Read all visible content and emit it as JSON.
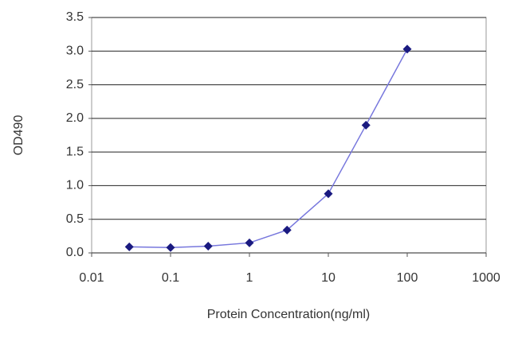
{
  "chart_data": {
    "type": "line",
    "x_label": "Protein Concentration(ng/ml)",
    "y_label": "OD490",
    "x": [
      0.03,
      0.1,
      0.3,
      1,
      3,
      10,
      30,
      100
    ],
    "series": [
      {
        "color": "#1a1a80",
        "line_color": "#7777dd",
        "values": [
          0.09,
          0.08,
          0.1,
          0.15,
          0.34,
          0.88,
          1.9,
          3.03
        ]
      }
    ],
    "xscale": "log",
    "xlim": [
      0.01,
      1000
    ],
    "xticks": [
      0.01,
      0.1,
      1,
      10,
      100,
      1000
    ],
    "ylim": [
      0,
      3.5
    ],
    "yticks": [
      {
        "value": 0,
        "label": "0.0"
      },
      0.5,
      {
        "value": 1,
        "label": "1.0"
      },
      1.5,
      {
        "value": 2,
        "label": "2.0"
      },
      2.5,
      {
        "value": 3,
        "label": "3.0"
      },
      3.5
    ],
    "grid": true
  }
}
